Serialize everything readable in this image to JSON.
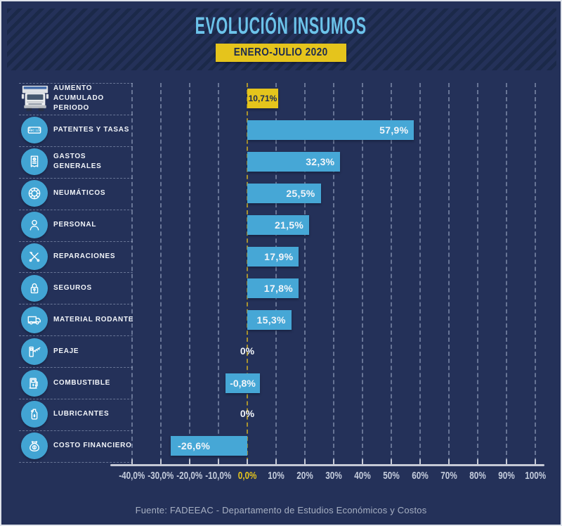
{
  "header": {
    "title": "EVOLUCIÓN INSUMOS",
    "badge": "ENERO-JULIO 2020"
  },
  "footer": {
    "source": "Fuente: FADEEAC - Departamento de Estudios Económicos y Costos"
  },
  "theme": {
    "bg": "#243159",
    "stripe": "#1b2949",
    "bar": "#46a7d6",
    "iconbg": "#42a4d3",
    "accent": "#e5c41c",
    "title": "#6cc3ea",
    "navy": "#1d2b4f",
    "grid": "rgba(160,173,200,0.55)",
    "zero": "#a8922f",
    "axis": "#c6cad6",
    "ticklabel": "#c5cddd",
    "footer": "#a7b0c3",
    "text": "#f2f5f9"
  },
  "chart_data": {
    "type": "bar",
    "orientation": "horizontal",
    "title": "EVOLUCIÓN INSUMOS",
    "subtitle": "ENERO-JULIO 2020",
    "unit": "%",
    "xlim": [
      -40,
      100
    ],
    "grid": "dashed vertical gridlines every 10%, zero line highlighted in yellow",
    "legend_position": "none",
    "categories": [
      "AUMENTO ACUMULADO PERIODO",
      "PATENTES Y TASAS",
      "GASTOS GENERALES",
      "NEUMÁTICOS",
      "PERSONAL",
      "REPARACIONES",
      "SEGUROS",
      "MATERIAL RODANTE",
      "PEAJE",
      "COMBUSTIBLE",
      "LUBRICANTES",
      "COSTO FINANCIERO"
    ],
    "values": [
      10.71,
      57.9,
      32.3,
      25.5,
      21.5,
      17.9,
      17.8,
      15.3,
      0,
      -0.8,
      0,
      -26.6
    ],
    "value_labels": [
      "10,71%",
      "57,9%",
      "32,3%",
      "25,5%",
      "21,5%",
      "17,9%",
      "17,8%",
      "15,3%",
      "0%",
      "-0,8%",
      "0%",
      "-26,6%"
    ],
    "icons": [
      "box-truck-front-icon",
      "license-plate-icon",
      "receipt-icon",
      "tire-icon",
      "person-icon",
      "repair-tools-icon",
      "padlock-icon",
      "truck-side-icon",
      "toll-barrier-icon",
      "fuel-pump-icon",
      "oil-container-icon",
      "money-bag-icon"
    ],
    "highlight_index": 0,
    "x_tick_values": [
      -40,
      -30,
      -20,
      -10,
      0,
      10,
      20,
      30,
      40,
      50,
      60,
      70,
      80,
      90,
      100
    ],
    "x_tick_labels": [
      "-40,0%",
      "-30,0%",
      "-20,0%",
      "-10,0%",
      "0,0%",
      "10%",
      "20%",
      "30%",
      "40%",
      "50%",
      "60%",
      "70%",
      "80%",
      "90%",
      "100%"
    ]
  }
}
